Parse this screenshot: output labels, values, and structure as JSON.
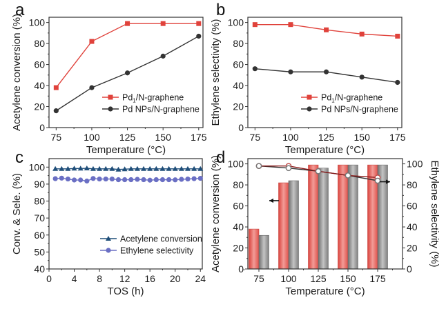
{
  "chart_data": [
    {
      "panel": "a",
      "type": "line",
      "title": "",
      "xlabel": "Temperature (°C)",
      "ylabel": "Acetylene conversion (%)",
      "x": [
        75,
        100,
        125,
        150,
        175
      ],
      "xticks": [
        75,
        100,
        125,
        150,
        175
      ],
      "yticks": [
        0,
        20,
        40,
        60,
        80,
        100
      ],
      "xlim": [
        70,
        178
      ],
      "ylim": [
        0,
        105
      ],
      "legend_position": "bottom-right",
      "series": [
        {
          "name": "Pd1/N-graphene",
          "name_main": "Pd",
          "name_sub": "1",
          "name_rest": "/N-graphene",
          "color": "#e0423b",
          "marker": "square",
          "values": [
            38,
            82,
            99,
            99,
            99
          ]
        },
        {
          "name": "Pd NPs/N-graphene",
          "color": "#333333",
          "marker": "circle",
          "values": [
            16,
            38,
            52,
            68,
            87
          ]
        }
      ]
    },
    {
      "panel": "b",
      "type": "line",
      "title": "",
      "xlabel": "Temperature (°C)",
      "ylabel": "Ethylene selectivity (%)",
      "x": [
        75,
        100,
        125,
        150,
        175
      ],
      "xticks": [
        75,
        100,
        125,
        150,
        175
      ],
      "yticks": [
        0,
        20,
        40,
        60,
        80,
        100
      ],
      "xlim": [
        70,
        178
      ],
      "ylim": [
        0,
        105
      ],
      "legend_position": "bottom-right",
      "series": [
        {
          "name": "Pd1/N-graphene",
          "name_main": "Pd",
          "name_sub": "1",
          "name_rest": "/N-graphene",
          "color": "#e0423b",
          "marker": "square",
          "values": [
            98,
            98,
            93,
            89,
            87
          ]
        },
        {
          "name": "Pd NPs/N-graphene",
          "color": "#333333",
          "marker": "circle",
          "values": [
            56,
            53,
            53,
            48,
            43
          ]
        }
      ]
    },
    {
      "panel": "c",
      "type": "line",
      "title": "",
      "xlabel": "TOS (h)",
      "ylabel": "Conv. & Sele. (%)",
      "x": [
        1,
        2,
        3,
        4,
        5,
        6,
        7,
        8,
        9,
        10,
        11,
        12,
        13,
        14,
        15,
        16,
        17,
        18,
        19,
        20,
        21,
        22,
        23,
        24
      ],
      "xticks": [
        0,
        4,
        8,
        12,
        16,
        20,
        24
      ],
      "yticks": [
        40,
        50,
        60,
        70,
        80,
        90,
        100
      ],
      "xlim": [
        0,
        24.3
      ],
      "ylim": [
        40,
        105
      ],
      "legend_position": "bottom-right",
      "series": [
        {
          "name": "Acetylene conversion",
          "color": "#1f4e79",
          "marker": "triangle",
          "values": [
            99,
            99,
            99,
            99.2,
            99.2,
            99.3,
            99,
            99,
            99,
            99,
            98.6,
            98.8,
            99,
            99,
            99,
            99,
            99,
            99,
            99,
            99,
            99,
            99,
            99,
            99
          ]
        },
        {
          "name": "Ethylene selectivity",
          "color": "#6a6fc4",
          "marker": "circle",
          "values": [
            93.2,
            93.5,
            93,
            92.4,
            92.4,
            91.8,
            93.3,
            93,
            93,
            93,
            92.6,
            92.6,
            92.6,
            92.8,
            92.6,
            92.3,
            92.6,
            92.6,
            92.6,
            92.5,
            92.8,
            93,
            93.2,
            93.4
          ]
        }
      ]
    },
    {
      "panel": "d",
      "type": "bar",
      "title": "",
      "xlabel": "Temperature (°C)",
      "ylabel": "Acetylene conversion (%)",
      "ylabel_right": "Ethylene selectivity (%)",
      "categories": [
        "75",
        "100",
        "125",
        "150",
        "175"
      ],
      "yticks": [
        0,
        20,
        40,
        60,
        80,
        100
      ],
      "ylim": [
        0,
        105
      ],
      "ylim_right": [
        0,
        105
      ],
      "bar_series": [
        {
          "name": "Red bars (conversion)",
          "color": "#e86a64",
          "values": [
            38,
            82,
            99,
            99,
            99
          ]
        },
        {
          "name": "Gray bars (conversion)",
          "color": "#9a9a9a",
          "values": [
            32,
            84,
            96,
            99,
            99
          ]
        }
      ],
      "line_series": [
        {
          "name": "Red line (selectivity)",
          "color": "#8b1a1a",
          "marker": "open-circle",
          "values": [
            98,
            98,
            93,
            89,
            87
          ]
        },
        {
          "name": "Dark line (selectivity)",
          "color": "#333333",
          "marker": "open-circle",
          "values": [
            98,
            96,
            93,
            89,
            84
          ]
        }
      ],
      "arrows": [
        {
          "direction": "left",
          "meaning": "left axis",
          "at_category": "100",
          "at_value": 65
        },
        {
          "direction": "right",
          "meaning": "right axis",
          "at_category": "175",
          "at_value": 83
        }
      ]
    }
  ],
  "panels": {
    "a": {
      "letter": "a"
    },
    "b": {
      "letter": "b"
    },
    "c": {
      "letter": "c"
    },
    "d": {
      "letter": "d"
    }
  }
}
